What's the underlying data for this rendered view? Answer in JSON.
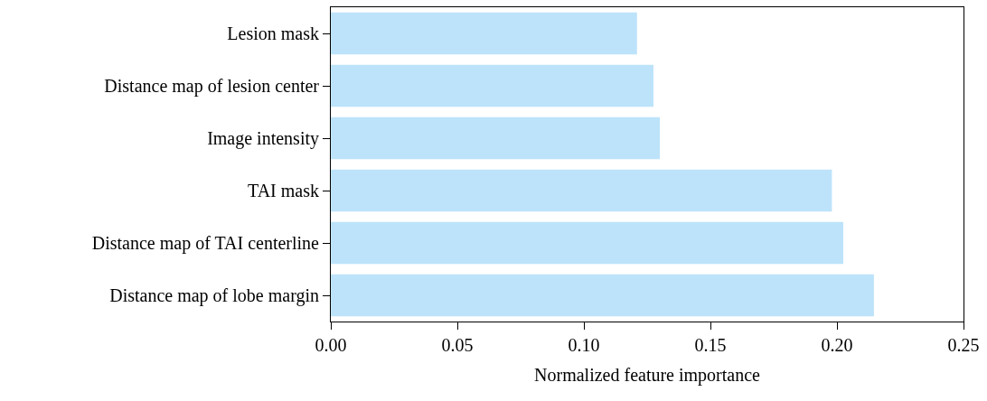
{
  "chart_data": {
    "type": "bar",
    "orientation": "horizontal",
    "xlabel": "Normalized feature importance",
    "categories": [
      "Lesion mask",
      "Distance map of lesion center",
      "Image intensity",
      "TAI mask",
      "Distance map of TAI centerline",
      "Distance map of lobe margin"
    ],
    "values": [
      0.121,
      0.1275,
      0.13,
      0.198,
      0.2025,
      0.2146
    ],
    "color": "#bde3fa",
    "xlim": [
      0,
      0.25
    ],
    "xticks": [
      {
        "value": 0,
        "label": "0.00"
      },
      {
        "value": 0.05,
        "label": "0.05"
      },
      {
        "value": 0.1,
        "label": "0.10"
      },
      {
        "value": 0.15,
        "label": "0.15"
      },
      {
        "value": 0.2,
        "label": "0.20"
      },
      {
        "value": 0.25,
        "label": "0.25"
      }
    ]
  }
}
